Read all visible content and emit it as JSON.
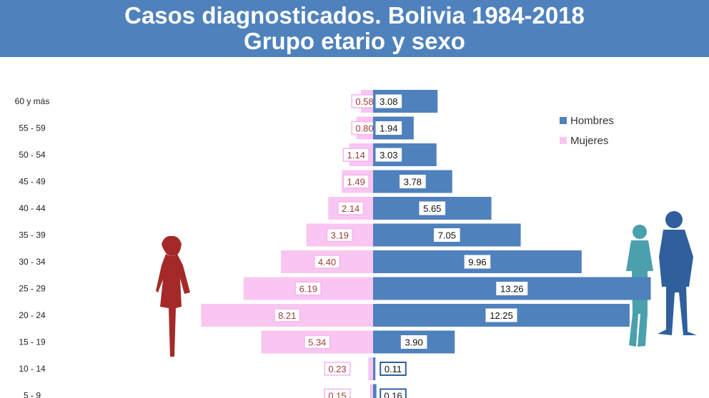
{
  "chart_data": {
    "type": "bar",
    "orientation": "horizontal-pyramid",
    "title": "Casos diagnosticados. Bolivia 1984-2018",
    "subtitle": "Grupo etario y sexo",
    "categories": [
      "60 y más",
      "55 - 59",
      "50 - 54",
      "45 - 49",
      "40 - 44",
      "35 - 39",
      "30 - 34",
      "25 - 29",
      "20 - 24",
      "15 - 19",
      "10 - 14",
      "5 - 9"
    ],
    "series": [
      {
        "name": "Hombres",
        "color": "#4f81bd",
        "side": "right",
        "values": [
          3.08,
          1.94,
          3.03,
          3.78,
          5.65,
          7.05,
          9.96,
          13.26,
          12.25,
          3.9,
          0.11,
          0.16
        ],
        "labels": [
          "3.08",
          "1.94",
          "3.03",
          "3.78",
          "5.65",
          "7.05",
          "9.96",
          "13.26",
          "12.25",
          "3.90",
          "0.11",
          "0.16"
        ]
      },
      {
        "name": "Mujeres",
        "color": "#f9c6f2",
        "side": "left",
        "values": [
          0.58,
          0.8,
          1.14,
          1.49,
          2.14,
          3.19,
          4.4,
          6.19,
          8.21,
          5.34,
          0.23,
          0.15
        ],
        "labels": [
          "0.58",
          "0.80",
          "1.14",
          "1.49",
          "2.14",
          "3.19",
          "4.40",
          "6.19",
          "8.21",
          "5.34",
          "0.23",
          "0.15"
        ]
      }
    ],
    "legend_position": "top-right",
    "grid": false
  },
  "icons": {
    "female": "female-silhouette-icon",
    "male": "male-silhouettes-icon"
  }
}
